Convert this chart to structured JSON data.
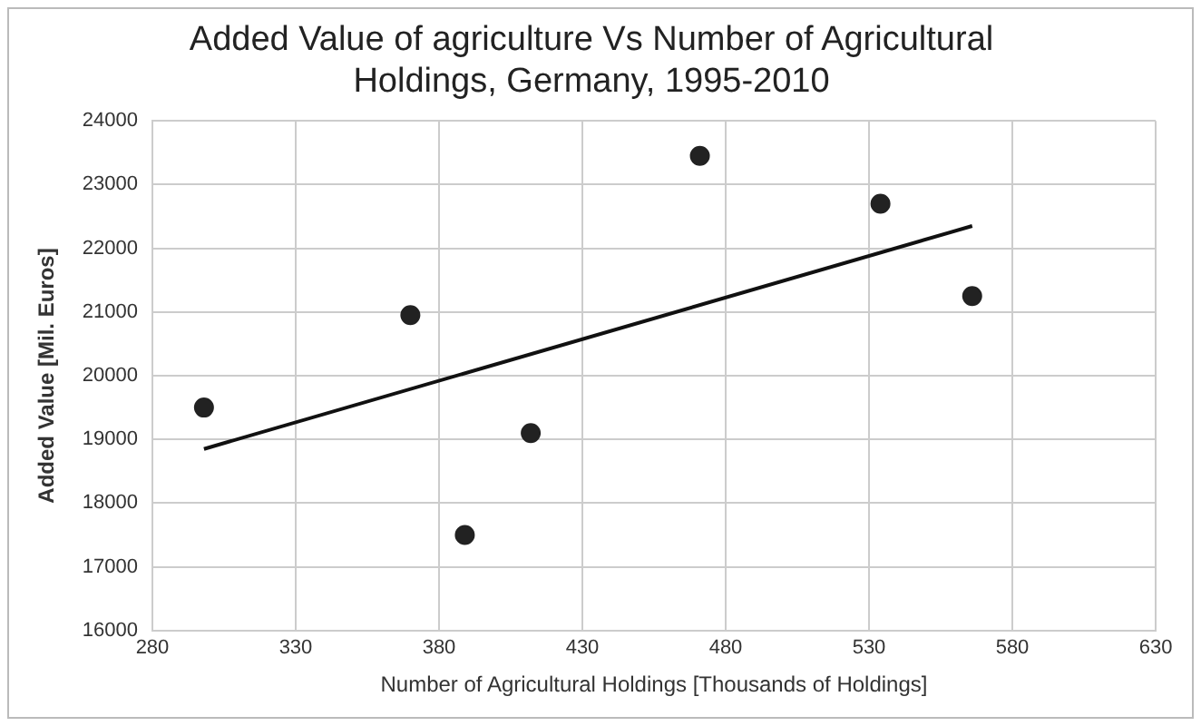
{
  "chart_data": {
    "type": "scatter",
    "title": [
      "Added Value of agriculture Vs Number of Agricultural",
      "Holdings, Germany, 1995-2010"
    ],
    "xlabel": "Number of Agricultural Holdings [Thousands of Holdings]",
    "ylabel": "Added Value [Mil. Euros]",
    "series": [
      {
        "color": "#222222",
        "marker": "circle",
        "x": [
          298,
          370,
          389,
          412,
          471,
          534,
          566
        ],
        "values": [
          19500,
          20950,
          17500,
          19100,
          23450,
          22700,
          21250
        ]
      },
      {
        "type": "line",
        "color": "#111111",
        "x": [
          298,
          566
        ],
        "values": [
          18850,
          22350
        ]
      }
    ],
    "xlim": [
      280,
      630
    ],
    "xticks": [
      280,
      330,
      380,
      430,
      480,
      530,
      580,
      630
    ],
    "ylim": [
      16000,
      24000
    ],
    "yticks": [
      16000,
      17000,
      18000,
      19000,
      20000,
      21000,
      22000,
      23000,
      24000
    ],
    "grid": true,
    "legend": false
  }
}
